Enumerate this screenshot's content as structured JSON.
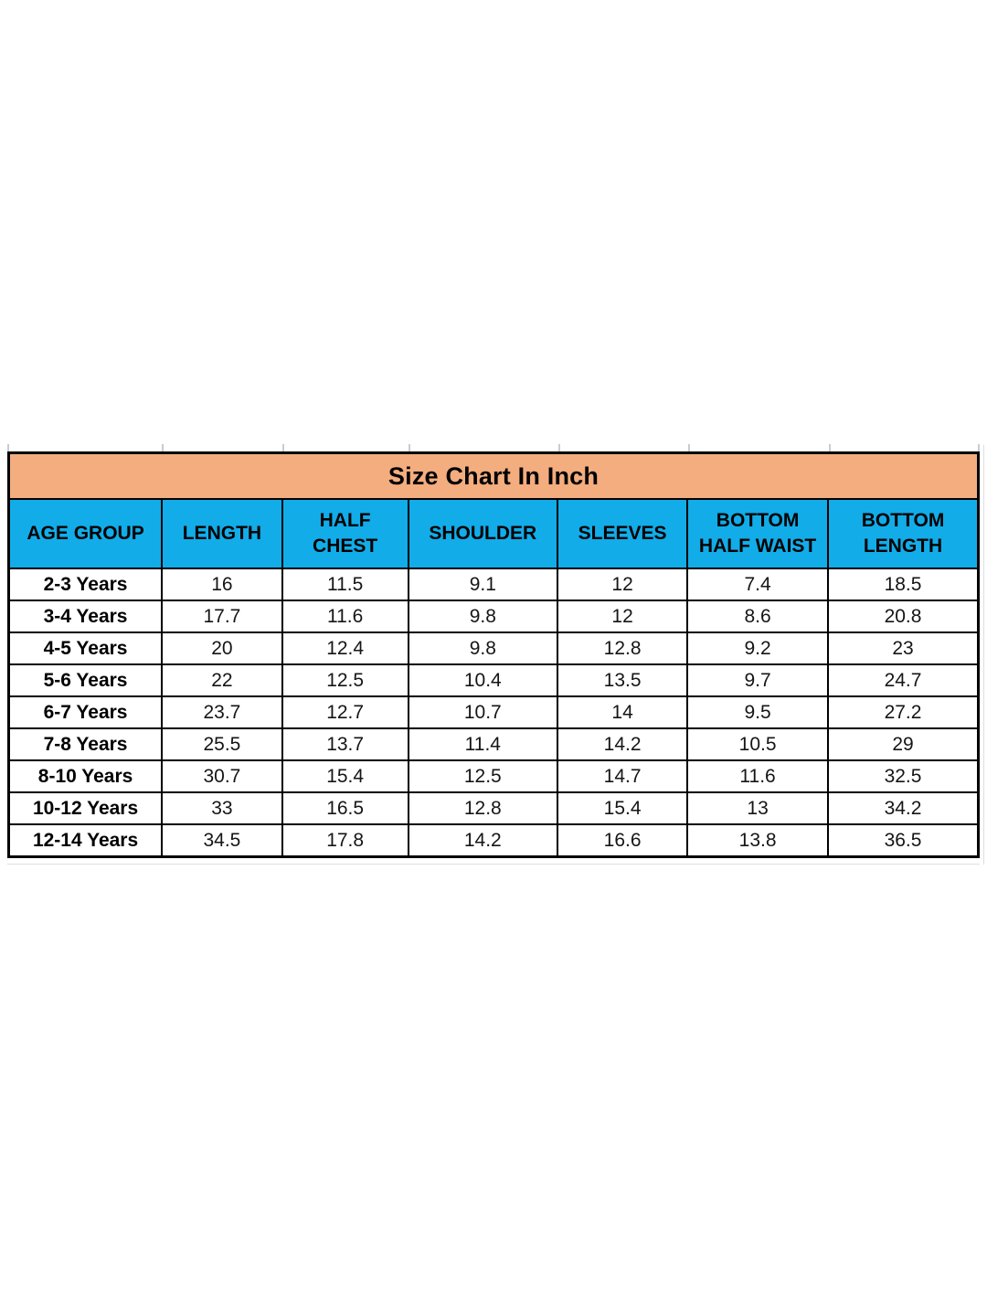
{
  "chart_data": {
    "type": "table",
    "title": "Size Chart In Inch",
    "columns": [
      "AGE GROUP",
      "LENGTH",
      "HALF CHEST",
      "SHOULDER",
      "SLEEVES",
      "BOTTOM HALF WAIST",
      "BOTTOM LENGTH"
    ],
    "rows": [
      [
        "2-3 Years",
        16,
        11.5,
        9.1,
        12,
        7.4,
        18.5
      ],
      [
        "3-4 Years",
        17.7,
        11.6,
        9.8,
        12,
        8.6,
        20.8
      ],
      [
        "4-5 Years",
        20,
        12.4,
        9.8,
        12.8,
        9.2,
        23
      ],
      [
        "5-6 Years",
        22,
        12.5,
        10.4,
        13.5,
        9.7,
        24.7
      ],
      [
        "6-7 Years",
        23.7,
        12.7,
        10.7,
        14,
        9.5,
        27.2
      ],
      [
        "7-8 Years",
        25.5,
        13.7,
        11.4,
        14.2,
        10.5,
        29
      ],
      [
        "8-10 Years",
        30.7,
        15.4,
        12.5,
        14.7,
        11.6,
        32.5
      ],
      [
        "10-12 Years",
        33,
        16.5,
        12.8,
        15.4,
        13,
        34.2
      ],
      [
        "12-14 Years",
        34.5,
        17.8,
        14.2,
        16.6,
        13.8,
        36.5
      ]
    ],
    "units": "inch"
  },
  "colors": {
    "title_bg": "#F3AD7E",
    "header_bg": "#12ACE8",
    "border": "#000000"
  }
}
